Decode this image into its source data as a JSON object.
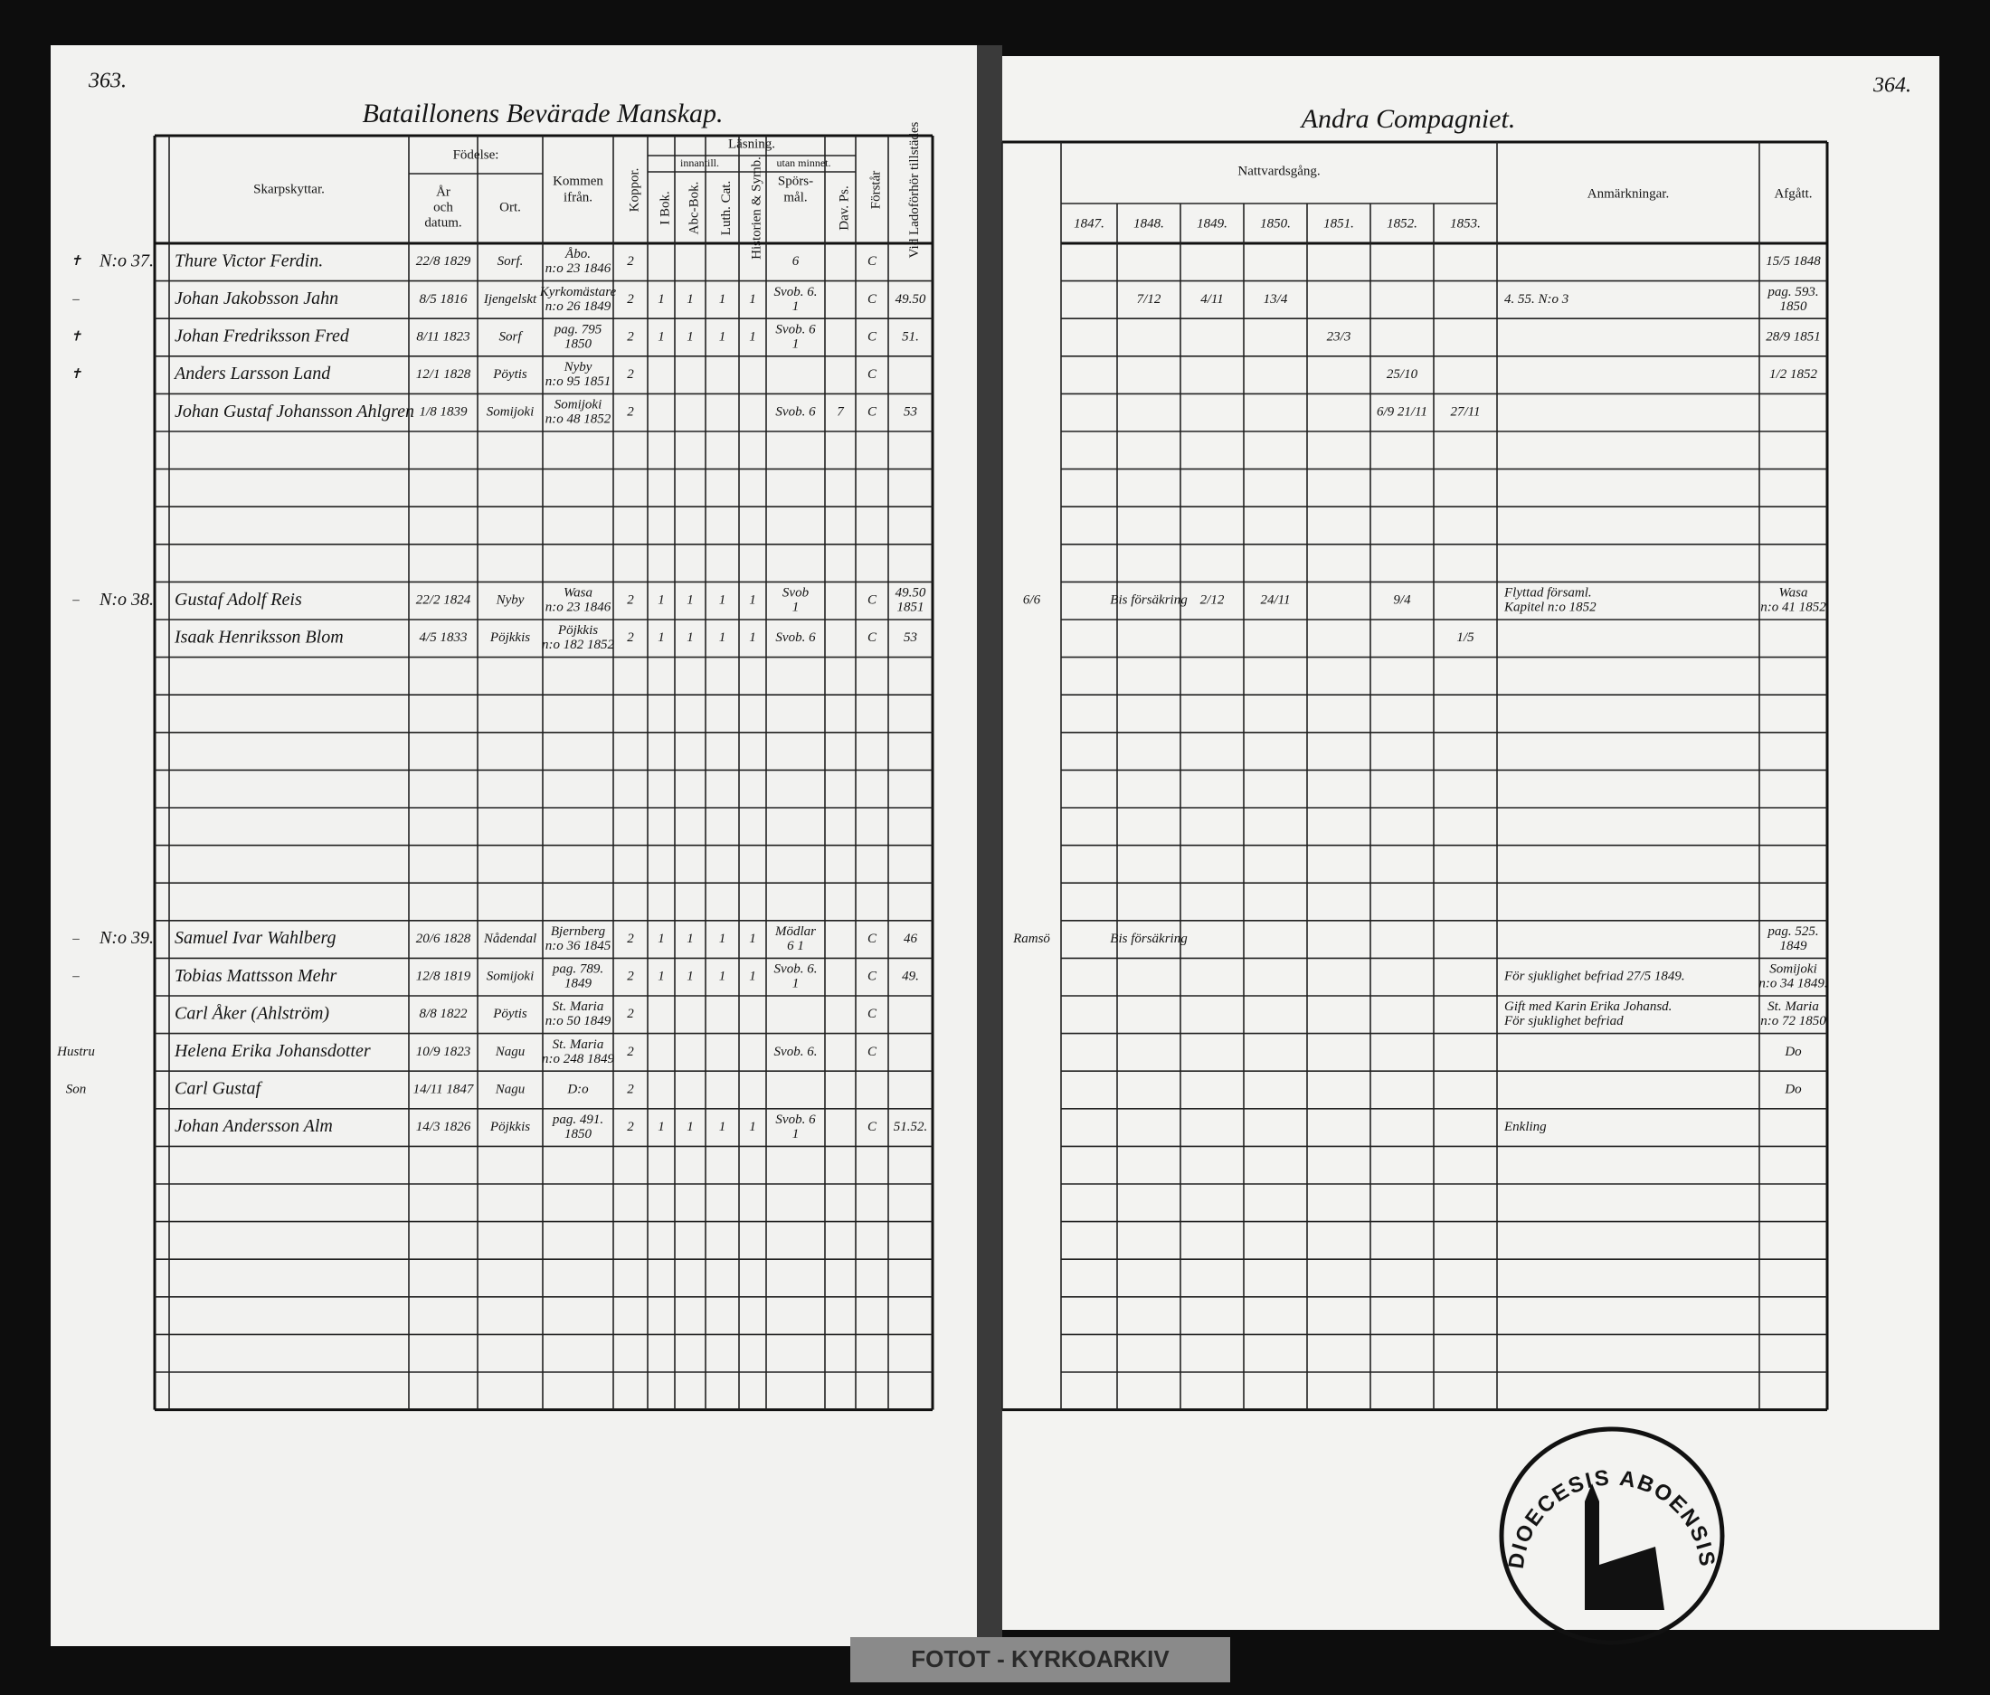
{
  "left_page": {
    "page_number": "363.",
    "title": "Bataillonens Bevärade Manskap.",
    "group_headers": {
      "birth": "Födelse:",
      "reading": "Läsning.",
      "reading_sub": [
        "innantill.",
        "utan minnet."
      ]
    },
    "headers": {
      "name": "Skarpskyttar.",
      "year": [
        "År",
        "och",
        "datum."
      ],
      "place": "Ort.",
      "from": [
        "Kommen",
        "ifrån."
      ],
      "kopp": "Koppor.",
      "ibok": "I Bok.",
      "abc": "Abc-Bok.",
      "luth": "Luth. Cat.",
      "hist": "Historien & Symb.",
      "spor": [
        "Spörs-",
        "mål."
      ],
      "dav": "Dav. Ps.",
      "forst": "Förstår",
      "ladu": "Vid Ladoförhör tillstädes"
    },
    "rows": [
      {
        "mark": "✝",
        "no": "N:o 37.",
        "name": "Thure Victor Ferdin.",
        "year": "22/8 1829",
        "place": "Sorf.",
        "from": [
          "Åbo.",
          "n:o 23 1846"
        ],
        "kopp": "2",
        "spor": "6",
        "forst": "C"
      },
      {
        "mark": "–",
        "name": "Johan Jakobsson Jahn",
        "year": "8/5 1816",
        "place": "Ijengelskt",
        "from": [
          "Kyrkomästare",
          "n:o 26 1849"
        ],
        "kopp": "2",
        "ibok": "1",
        "abc": "1",
        "luth": "1",
        "hist": "1",
        "spor": [
          "Svob. 6.",
          "1"
        ],
        "forst": "C",
        "ladu": "49.50"
      },
      {
        "mark": "✝",
        "name": "Johan Fredriksson Fred",
        "year": "8/11 1823",
        "place": "Sorf",
        "from": [
          "pag. 795",
          "1850"
        ],
        "kopp": "2",
        "ibok": "1",
        "abc": "1",
        "luth": "1",
        "hist": "1",
        "spor": [
          "Svob. 6",
          "1"
        ],
        "forst": "C",
        "ladu": "51."
      },
      {
        "mark": "✝",
        "name": "Anders Larsson Land",
        "year": "12/1 1828",
        "place": "Pöytis",
        "from": [
          "Nyby",
          "n:o 95 1851"
        ],
        "kopp": "2",
        "forst": "C"
      },
      {
        "name": "Johan Gustaf Johansson Ahlgren",
        "year": "1/8 1839",
        "place": "Somijoki",
        "from": [
          "Somijoki",
          "n:o 48 1852"
        ],
        "kopp": "2",
        "spor": "Svob. 6",
        "dav": "7",
        "forst": "C",
        "ladu": "53"
      },
      {},
      {},
      {},
      {},
      {
        "mark": "–",
        "no": "N:o 38.",
        "name": "Gustaf Adolf Reis",
        "year": "22/2 1824",
        "place": "Nyby",
        "from": [
          "Wasa",
          "n:o 23 1846"
        ],
        "kopp": "2",
        "ibok": "1",
        "abc": "1",
        "luth": "1",
        "hist": "1",
        "spor": [
          "Svob",
          "1"
        ],
        "forst": "C",
        "ladu": [
          "49.50",
          "1851"
        ]
      },
      {
        "name": "Isaak Henriksson Blom",
        "year": "4/5 1833",
        "place": "Pöjkkis",
        "from": [
          "Pöjkkis",
          "n:o 182 1852"
        ],
        "kopp": "2",
        "ibok": "1",
        "abc": "1",
        "luth": "1",
        "hist": "1",
        "spor": "Svob. 6",
        "forst": "C",
        "ladu": "53"
      },
      {},
      {},
      {},
      {},
      {},
      {},
      {},
      {
        "mark": "–",
        "no": "N:o 39.",
        "name": "Samuel Ivar Wahlberg",
        "year": "20/6 1828",
        "place": "Nådendal",
        "from": [
          "Bjernberg",
          "n:o 36 1845"
        ],
        "kopp": "2",
        "ibok": "1",
        "abc": "1",
        "luth": "1",
        "hist": "1",
        "spor": [
          "Mödlar",
          "6 1"
        ],
        "forst": "C",
        "ladu": "46"
      },
      {
        "mark": "–",
        "name": "Tobias Mattsson Mehr",
        "year": "12/8 1819",
        "place": "Somijoki",
        "from": [
          "pag. 789.",
          "1849"
        ],
        "kopp": "2",
        "ibok": "1",
        "abc": "1",
        "luth": "1",
        "hist": "1",
        "spor": [
          "Svob. 6.",
          "1"
        ],
        "forst": "C",
        "ladu": "49."
      },
      {
        "name": "Carl Åker (Ahlström)",
        "year": "8/8 1822",
        "place": "Pöytis",
        "from": [
          "St. Maria",
          "n:o 50 1849"
        ],
        "kopp": "2",
        "forst": "C"
      },
      {
        "mark": "Hustru",
        "name": "Helena Erika Johansdotter",
        "year": "10/9 1823",
        "place": "Nagu",
        "from": [
          "St. Maria",
          "n:o 248 1849"
        ],
        "kopp": "2",
        "spor": "Svob. 6.",
        "forst": "C"
      },
      {
        "mark": "Son",
        "name": "Carl Gustaf",
        "year": "14/11 1847",
        "place": "Nagu",
        "from": "D:o",
        "kopp": "2"
      },
      {
        "name": "Johan Andersson Alm",
        "year": "14/3 1826",
        "place": "Pöjkkis",
        "from": [
          "pag. 491.",
          "1850"
        ],
        "kopp": "2",
        "ibok": "1",
        "abc": "1",
        "luth": "1",
        "hist": "1",
        "spor": [
          "Svob. 6",
          "1"
        ],
        "forst": "C",
        "ladu": "51.52."
      },
      {},
      {},
      {},
      {},
      {},
      {},
      {}
    ]
  },
  "right_page": {
    "page_number": "364.",
    "title": "Andra Compagniet.",
    "group_headers": {
      "communion": "Nattvardsgång."
    },
    "headers": {
      "y1847": "1847.",
      "y1848": "1848.",
      "y1849": "1849.",
      "y1850": "1850.",
      "y1851": "1851.",
      "y1852": "1852.",
      "y1853": "1853.",
      "anm": "Anmärkningar.",
      "afgatt": "Afgått."
    },
    "rows": [
      {
        "afgatt": "15/5 1848"
      },
      {
        "y1848": "7/12",
        "y1849": "4/11",
        "y1850": "13/4",
        "anm": "4. 55. N:o 3",
        "afgatt": [
          "pag. 593.",
          "1850"
        ]
      },
      {
        "y1851": "23/3",
        "afgatt": "28/9 1851"
      },
      {
        "y1852": "25/10",
        "afgatt": "1/2 1852"
      },
      {
        "y1852": "6/9 21/11",
        "y1853": "27/11"
      },
      {},
      {},
      {},
      {},
      {
        "c0": "6/6",
        "y1848": "Bis försäkring",
        "y1849": "2/12",
        "y1850": "24/11",
        "y1852": "9/4",
        "anm": [
          "Flyttad församl.",
          "Kapitel n:o 1852"
        ],
        "afgatt": [
          "Wasa",
          "n:o 41 1852"
        ]
      },
      {
        "y1853": "1/5"
      },
      {},
      {},
      {},
      {},
      {},
      {},
      {},
      {
        "c0": "Ramsö",
        "y1848": "Bis försäkring",
        "afgatt": [
          "pag. 525.",
          "1849"
        ]
      },
      {
        "anm": "För sjuklighet befriad 27/5 1849.",
        "afgatt": [
          "Somijoki",
          "n:o 34 1849."
        ]
      },
      {
        "anm": [
          "Gift med Karin Erika Johansd.",
          "För sjuklighet befriad"
        ],
        "afgatt": [
          "St. Maria",
          "n:o 72 1850"
        ]
      },
      {
        "afgatt": "Do"
      },
      {
        "afgatt": "Do"
      },
      {
        "anm": "Enkling"
      },
      {},
      {},
      {},
      {},
      {},
      {},
      {}
    ]
  },
  "stamp": {
    "text": "DIOECESIS ABOENSIS"
  },
  "archive_label": "FOTOT - KYRKOARKIV"
}
